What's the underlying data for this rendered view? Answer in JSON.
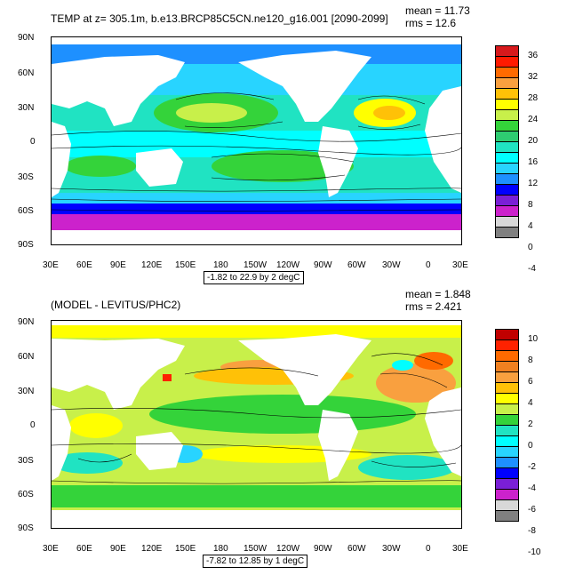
{
  "panel1": {
    "title": "TEMP at z= 305.1m, b.e13.BRCP85C5CN.ne120_g16.001 [2090-2099]",
    "mean": "mean = 11.73",
    "rms": "rms = 12.6",
    "range_text": "-1.82 to 22.9 by 2 degC",
    "colorbar_labels": [
      "36",
      "32",
      "28",
      "24",
      "20",
      "16",
      "12",
      "8",
      "4",
      "0",
      "-4"
    ],
    "colorbar_colors": [
      "#d7191c",
      "#ff1a00",
      "#ff6a00",
      "#f9a03f",
      "#ffc107",
      "#ffff00",
      "#c8f04a",
      "#34d33a",
      "#2ecc71",
      "#20e3c2",
      "#00ffff",
      "#28d4ff",
      "#1e90ff",
      "#0000ff",
      "#7a1fd6",
      "#cc22cc",
      "#d8d8d8",
      "#808080"
    ]
  },
  "panel2": {
    "title": "(MODEL - LEVITUS/PHC2)",
    "mean": "mean = 1.848",
    "rms": "rms = 2.421",
    "range_text": "-7.82 to 12.85 by 1 degC",
    "colorbar_labels": [
      "10",
      "8",
      "6",
      "4",
      "2",
      "0",
      "-2",
      "-4",
      "-6",
      "-8",
      "-10"
    ],
    "colorbar_colors": [
      "#c00000",
      "#ff2200",
      "#ff6a00",
      "#f08020",
      "#f9a03f",
      "#ffc107",
      "#ffff00",
      "#c8f04a",
      "#34d33a",
      "#20e3c2",
      "#00ffff",
      "#28d4ff",
      "#1e90ff",
      "#0000ff",
      "#7a1fd6",
      "#cc22cc",
      "#d8d8d8",
      "#808080"
    ]
  },
  "axes": {
    "lat_labels": [
      "90N",
      "60N",
      "30N",
      "0",
      "30S",
      "60S",
      "90S"
    ],
    "lon_labels": [
      "30E",
      "60E",
      "90E",
      "120E",
      "150E",
      "180",
      "150W",
      "120W",
      "90W",
      "60W",
      "30W",
      "0",
      "30E"
    ]
  },
  "colors": {
    "land": "#ffffff",
    "frame": "#000000"
  }
}
